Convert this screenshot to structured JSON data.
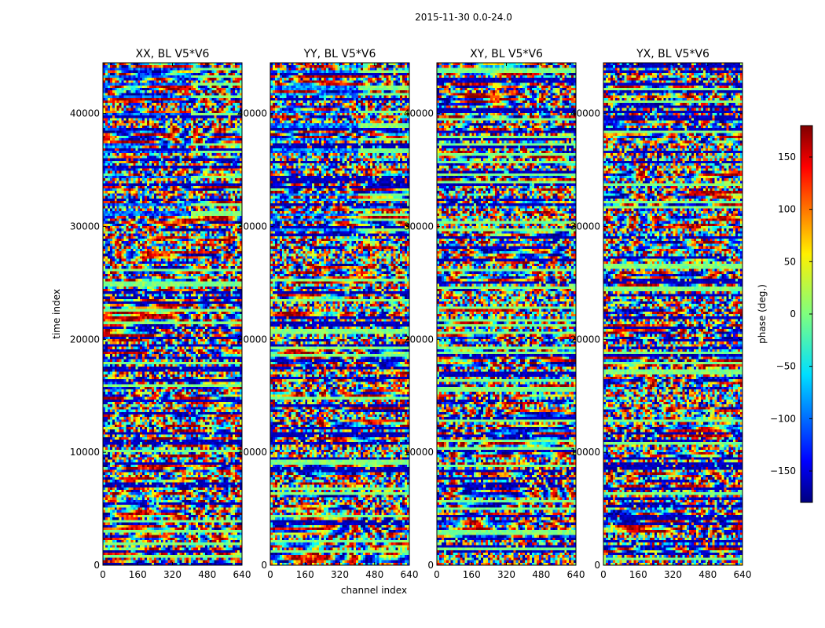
{
  "chart_data": {
    "type": "heatmap",
    "suptitle": "2015-11-30 0.0-24.0",
    "xlabel": "channel index",
    "ylabel": "time index",
    "xlim": [
      0,
      640
    ],
    "ylim": [
      0,
      44500
    ],
    "xticks": [
      0,
      160,
      320,
      480,
      640
    ],
    "yticks": [
      0,
      10000,
      20000,
      30000,
      40000
    ],
    "panels": [
      {
        "title": "XX, BL V5*V6"
      },
      {
        "title": "YY, BL V5*V6"
      },
      {
        "title": "XY, BL V5*V6"
      },
      {
        "title": "YX, BL V5*V6"
      }
    ],
    "colorbar": {
      "label": "phase (deg.)",
      "range": [
        -180,
        180
      ],
      "ticks": [
        150,
        100,
        50,
        0,
        -50,
        -100,
        -150
      ],
      "tick_labels": [
        "150",
        "100",
        "50",
        "0",
        "−50",
        "−100",
        "−150"
      ],
      "colormap": "jet"
    },
    "colors": {
      "low": "#00007f",
      "mid": "#7fff7f",
      "high": "#7f0000"
    }
  }
}
